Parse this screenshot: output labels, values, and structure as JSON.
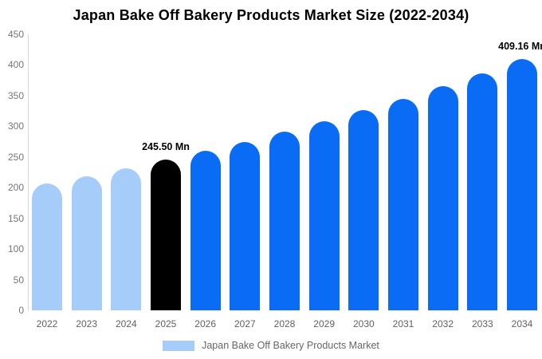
{
  "chart_title": "Japan Bake Off Bakery Products Market Size (2022-2034)",
  "legend": {
    "label": "Japan Bake Off Bakery Products Market",
    "swatch_color": "#a6cdf9"
  },
  "colors": {
    "historical_bar": "#a6cdf9",
    "highlight_bar": "#000000",
    "forecast_bar": "#0a6cf5",
    "axis_line": "#d7d7d7",
    "tick_text": "#757575",
    "xlabel_text": "#616161",
    "legend_text": "#666666",
    "annotation_text": "#000000",
    "background": "#ffffff"
  },
  "chart_data": {
    "type": "bar",
    "title": "Japan Bake Off Bakery Products Market Size (2022-2034)",
    "categories": [
      "2022",
      "2023",
      "2024",
      "2025",
      "2026",
      "2027",
      "2028",
      "2029",
      "2030",
      "2031",
      "2032",
      "2033",
      "2034"
    ],
    "values": [
      207.06,
      219.15,
      231.95,
      245.5,
      259.84,
      275.01,
      291.07,
      308.07,
      326.06,
      345.1,
      365.26,
      386.59,
      409.16
    ],
    "bar_styles": [
      "historical",
      "historical",
      "historical",
      "highlight",
      "forecast",
      "forecast",
      "forecast",
      "forecast",
      "forecast",
      "forecast",
      "forecast",
      "forecast",
      "forecast"
    ],
    "bar_labels": [
      "",
      "",
      "",
      "245.50 Mn",
      "",
      "",
      "",
      "",
      "",
      "",
      "",
      "",
      "409.16 Mn"
    ],
    "unit": "Mn",
    "xlabel": "",
    "ylabel": "",
    "ylim": [
      0,
      450
    ],
    "yticks": [
      0,
      50,
      100,
      150,
      200,
      250,
      300,
      350,
      400,
      450
    ],
    "grid": false,
    "legend_position": "bottom",
    "legend_entries": [
      "Japan Bake Off Bakery Products Market"
    ]
  }
}
